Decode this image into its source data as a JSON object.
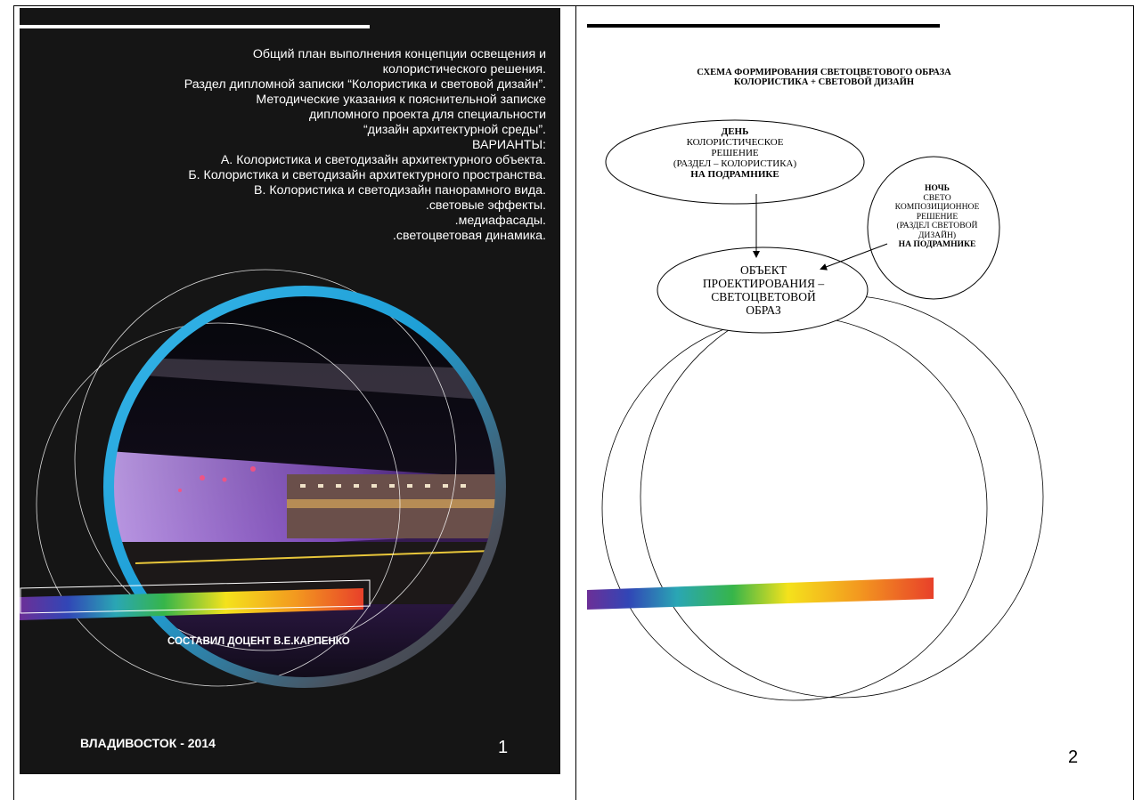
{
  "page1": {
    "heading_lines": [
      "Общий план выполнения концепции освещения и",
      "колористического решения.",
      "Раздел дипломной записки “Колористика и световой дизайн”.",
      "Методические указания к пояснительной записке",
      "дипломного проекта для специальности",
      "“дизайн архитектурной среды”.",
      "ВАРИАНТЫ:",
      "А. Колористика и светодизайн архитектурного объекта.",
      "Б. Колористика и светодизайн архитектурного пространства.",
      "В. Колористика и светодизайн панорамного вида.",
      ".световые эффекты.",
      ".медиафасады.",
      ".светоцветовая динамика."
    ],
    "author": "СОСТАВИЛ ДОЦЕНТ В.Е.КАРПЕНКО",
    "city_year": "ВЛАДИВОСТОК - 2014",
    "page_number": "1",
    "colors": {
      "background": "#151515",
      "ring": "#1e9fd6",
      "text": "#ffffff"
    }
  },
  "page2": {
    "title_line1": "СХЕМА ФОРМИРОВАНИЯ СВЕТОЦВЕТОВОГО ОБРАЗА",
    "title_line2": "КОЛОРИСТИКА + СВЕТОВОЙ ДИЗАЙН",
    "day": {
      "heading": "ДЕНЬ",
      "line1": "КОЛОРИСТИЧЕСКОЕ",
      "line2": "РЕШЕНИЕ",
      "line3": "(РАЗДЕЛ – КОЛОРИСТИКА)",
      "footer": "НА ПОДРАМНИКЕ"
    },
    "night": {
      "heading": "НОЧЬ",
      "line1": "СВЕТО",
      "line2": "КОМПОЗИЦИОННОЕ",
      "line3": "РЕШЕНИЕ",
      "line4": "(РАЗДЕЛ СВЕТОВОЙ",
      "line5": "ДИЗАЙН)",
      "footer": "НА ПОДРАМНИКЕ"
    },
    "object": {
      "line1": "ОБЪЕКТ",
      "line2": "ПРОЕКТИРОВАНИЯ –",
      "line3": "СВЕТОЦВЕТОВОЙ",
      "line4": "ОБРАЗ"
    },
    "page_number": "2"
  }
}
